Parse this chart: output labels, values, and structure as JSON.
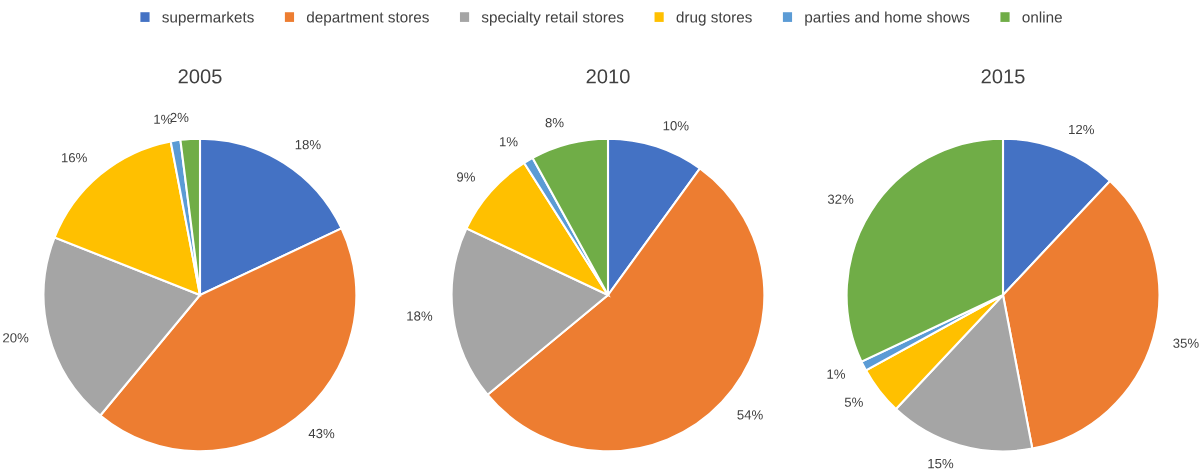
{
  "chart_data": [
    {
      "type": "pie",
      "title": "2005",
      "legend": "top",
      "categories": [
        "supermarkets",
        "department stores",
        "specialty retail stores",
        "drug stores",
        "parties and home shows",
        "online"
      ],
      "values": [
        18,
        43,
        20,
        16,
        1,
        2
      ],
      "value_labels": [
        "18%",
        "43%",
        "20%",
        "16%",
        "1%",
        "2%"
      ],
      "colors": [
        "#4472c4",
        "#ed7d31",
        "#a5a5a5",
        "#ffc000",
        "#5b9bd5",
        "#70ad47"
      ]
    },
    {
      "type": "pie",
      "title": "2010",
      "categories": [
        null,
        null,
        null,
        null,
        null,
        null
      ],
      "values": [
        10,
        54,
        18,
        9,
        1,
        8
      ],
      "value_labels": [
        "10%",
        "54%",
        "18%",
        "9%",
        "1%",
        "8%"
      ],
      "colors": [
        "#4472c4",
        "#ed7d31",
        "#a5a5a5",
        "#ffc000",
        "#5b9bd5",
        "#70ad47"
      ]
    },
    {
      "type": "pie",
      "title": "2015",
      "categories": [
        null,
        null,
        null,
        null,
        null,
        null
      ],
      "values": [
        12,
        35,
        15,
        5,
        1,
        32
      ],
      "value_labels": [
        "12%",
        "35%",
        "15%",
        "5%",
        "1%",
        "32%"
      ],
      "colors": [
        "#4472c4",
        "#ed7d31",
        "#a5a5a5",
        "#ffc000",
        "#5b9bd5",
        "#70ad47"
      ]
    }
  ]
}
